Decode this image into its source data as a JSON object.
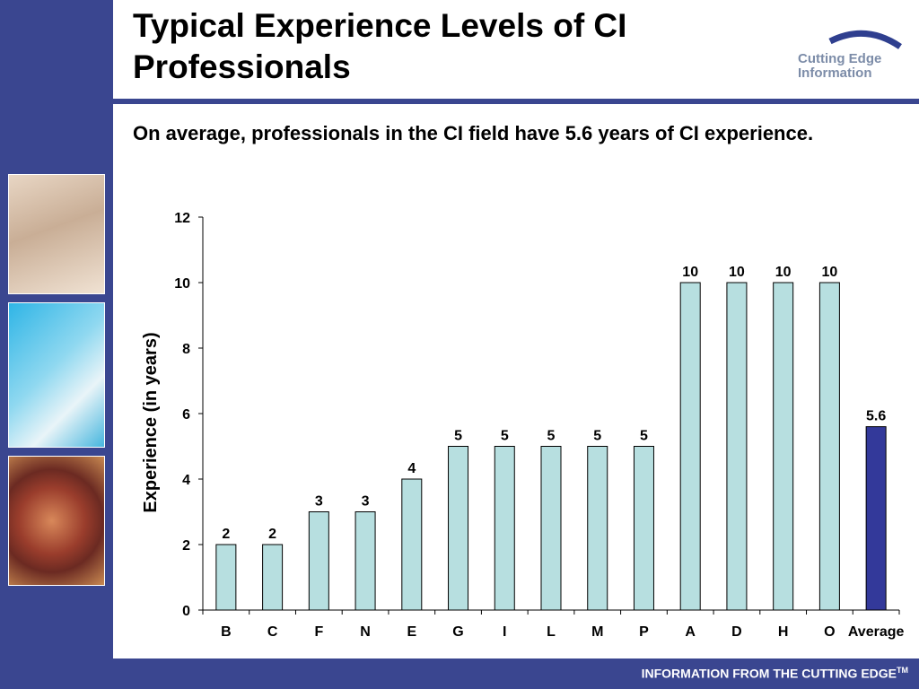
{
  "slide": {
    "title": "Typical Experience Levels of CI Professionals",
    "subtitle": "On average, professionals in the CI field have 5.6 years of CI experience.",
    "logo_line1": "Cutting Edge",
    "logo_line2": "Information",
    "footer": "INFORMATION FROM THE CUTTING EDGE",
    "footer_mark": "TM"
  },
  "colors": {
    "bar": "#b7dfe0",
    "bar_highlight": "#33399a",
    "brand": "#3a4690"
  },
  "chart_data": {
    "type": "bar",
    "categories": [
      "B",
      "C",
      "F",
      "N",
      "E",
      "G",
      "I",
      "L",
      "M",
      "P",
      "A",
      "D",
      "H",
      "O",
      "Average"
    ],
    "values": [
      2,
      2,
      3,
      3,
      4,
      5,
      5,
      5,
      5,
      5,
      10,
      10,
      10,
      10,
      5.6
    ],
    "data_labels": [
      "2",
      "2",
      "3",
      "3",
      "4",
      "5",
      "5",
      "5",
      "5",
      "5",
      "10",
      "10",
      "10",
      "10",
      "5.6"
    ],
    "highlight_category": "Average",
    "ylabel": "Experience (in years)",
    "xlabel": "",
    "ylim": [
      0,
      12
    ],
    "yticks": [
      0,
      2,
      4,
      6,
      8,
      10,
      12
    ],
    "grid": false,
    "legend": "none"
  }
}
